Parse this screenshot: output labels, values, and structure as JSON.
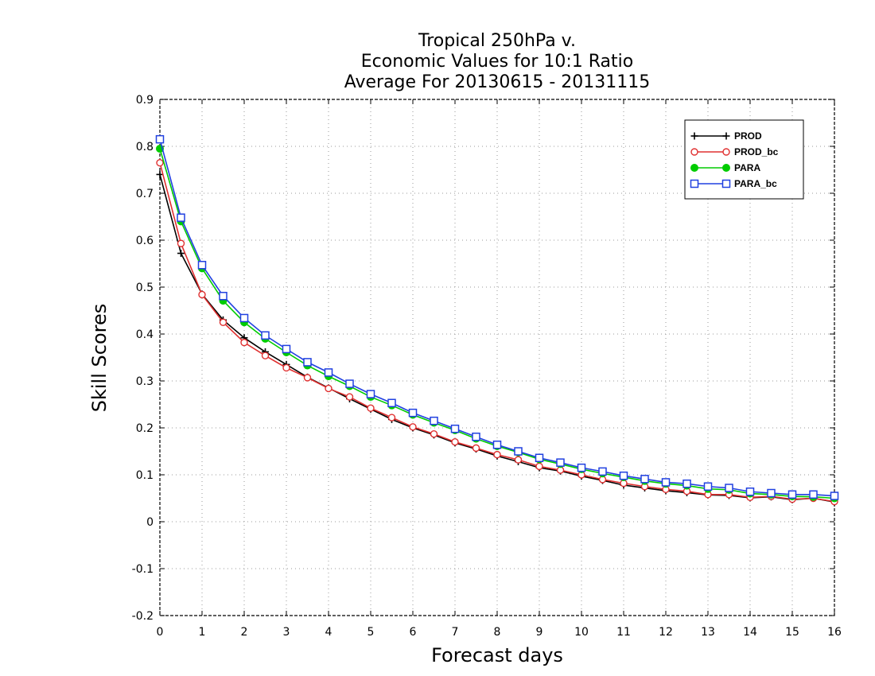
{
  "chart_data": {
    "type": "line",
    "title_lines": [
      "Tropical 250hPa v.",
      "Economic Values for 10:1 Ratio",
      "Average For 20130615 - 20131115"
    ],
    "xlabel": "Forecast days",
    "ylabel": "Skill Scores",
    "xlim": [
      0,
      16
    ],
    "ylim": [
      -0.2,
      0.9
    ],
    "xticks": [
      "0",
      "1",
      "2",
      "3",
      "4",
      "5",
      "6",
      "7",
      "8",
      "9",
      "10",
      "11",
      "12",
      "13",
      "14",
      "15",
      "16"
    ],
    "yticks": [
      "-0.2",
      "-0.1",
      "0",
      "0.1",
      "0.2",
      "0.3",
      "0.4",
      "0.5",
      "0.6",
      "0.7",
      "0.8",
      "0.9"
    ],
    "grid": true,
    "legend_position": "top-right",
    "x": [
      0,
      0.5,
      1,
      1.5,
      2,
      2.5,
      3,
      3.5,
      4,
      4.5,
      5,
      5.5,
      6,
      6.5,
      7,
      7.5,
      8,
      8.5,
      9,
      9.5,
      10,
      10.5,
      11,
      11.5,
      12,
      12.5,
      13,
      13.5,
      14,
      14.5,
      15,
      15.5,
      16
    ],
    "series": [
      {
        "name": "PROD",
        "color": "#000000",
        "marker": "plus",
        "values": [
          0.74,
          0.572,
          0.485,
          0.43,
          0.392,
          0.362,
          0.335,
          0.308,
          0.285,
          0.262,
          0.24,
          0.218,
          0.2,
          0.185,
          0.168,
          0.155,
          0.14,
          0.128,
          0.115,
          0.108,
          0.097,
          0.088,
          0.078,
          0.072,
          0.066,
          0.062,
          0.057,
          0.056,
          0.051,
          0.053,
          0.047,
          0.05,
          0.042
        ]
      },
      {
        "name": "PROD_bc",
        "color": "#e03030",
        "marker": "circle",
        "values": [
          0.765,
          0.593,
          0.484,
          0.425,
          0.382,
          0.354,
          0.328,
          0.307,
          0.284,
          0.266,
          0.242,
          0.222,
          0.202,
          0.187,
          0.17,
          0.157,
          0.143,
          0.132,
          0.118,
          0.11,
          0.1,
          0.09,
          0.082,
          0.075,
          0.069,
          0.065,
          0.058,
          0.058,
          0.052,
          0.054,
          0.048,
          0.05,
          0.043
        ]
      },
      {
        "name": "PARA",
        "color": "#00cc00",
        "marker": "filled-circle",
        "values": [
          0.795,
          0.64,
          0.54,
          0.471,
          0.425,
          0.39,
          0.361,
          0.333,
          0.31,
          0.289,
          0.266,
          0.248,
          0.228,
          0.211,
          0.195,
          0.177,
          0.161,
          0.148,
          0.133,
          0.123,
          0.112,
          0.103,
          0.095,
          0.087,
          0.081,
          0.077,
          0.07,
          0.068,
          0.06,
          0.058,
          0.054,
          0.053,
          0.05
        ]
      },
      {
        "name": "PARA_bc",
        "color": "#2040e0",
        "marker": "square",
        "values": [
          0.815,
          0.648,
          0.547,
          0.481,
          0.434,
          0.397,
          0.368,
          0.34,
          0.318,
          0.294,
          0.272,
          0.253,
          0.232,
          0.215,
          0.198,
          0.181,
          0.164,
          0.15,
          0.136,
          0.126,
          0.115,
          0.107,
          0.098,
          0.091,
          0.084,
          0.081,
          0.075,
          0.072,
          0.064,
          0.061,
          0.058,
          0.058,
          0.055
        ]
      }
    ]
  }
}
